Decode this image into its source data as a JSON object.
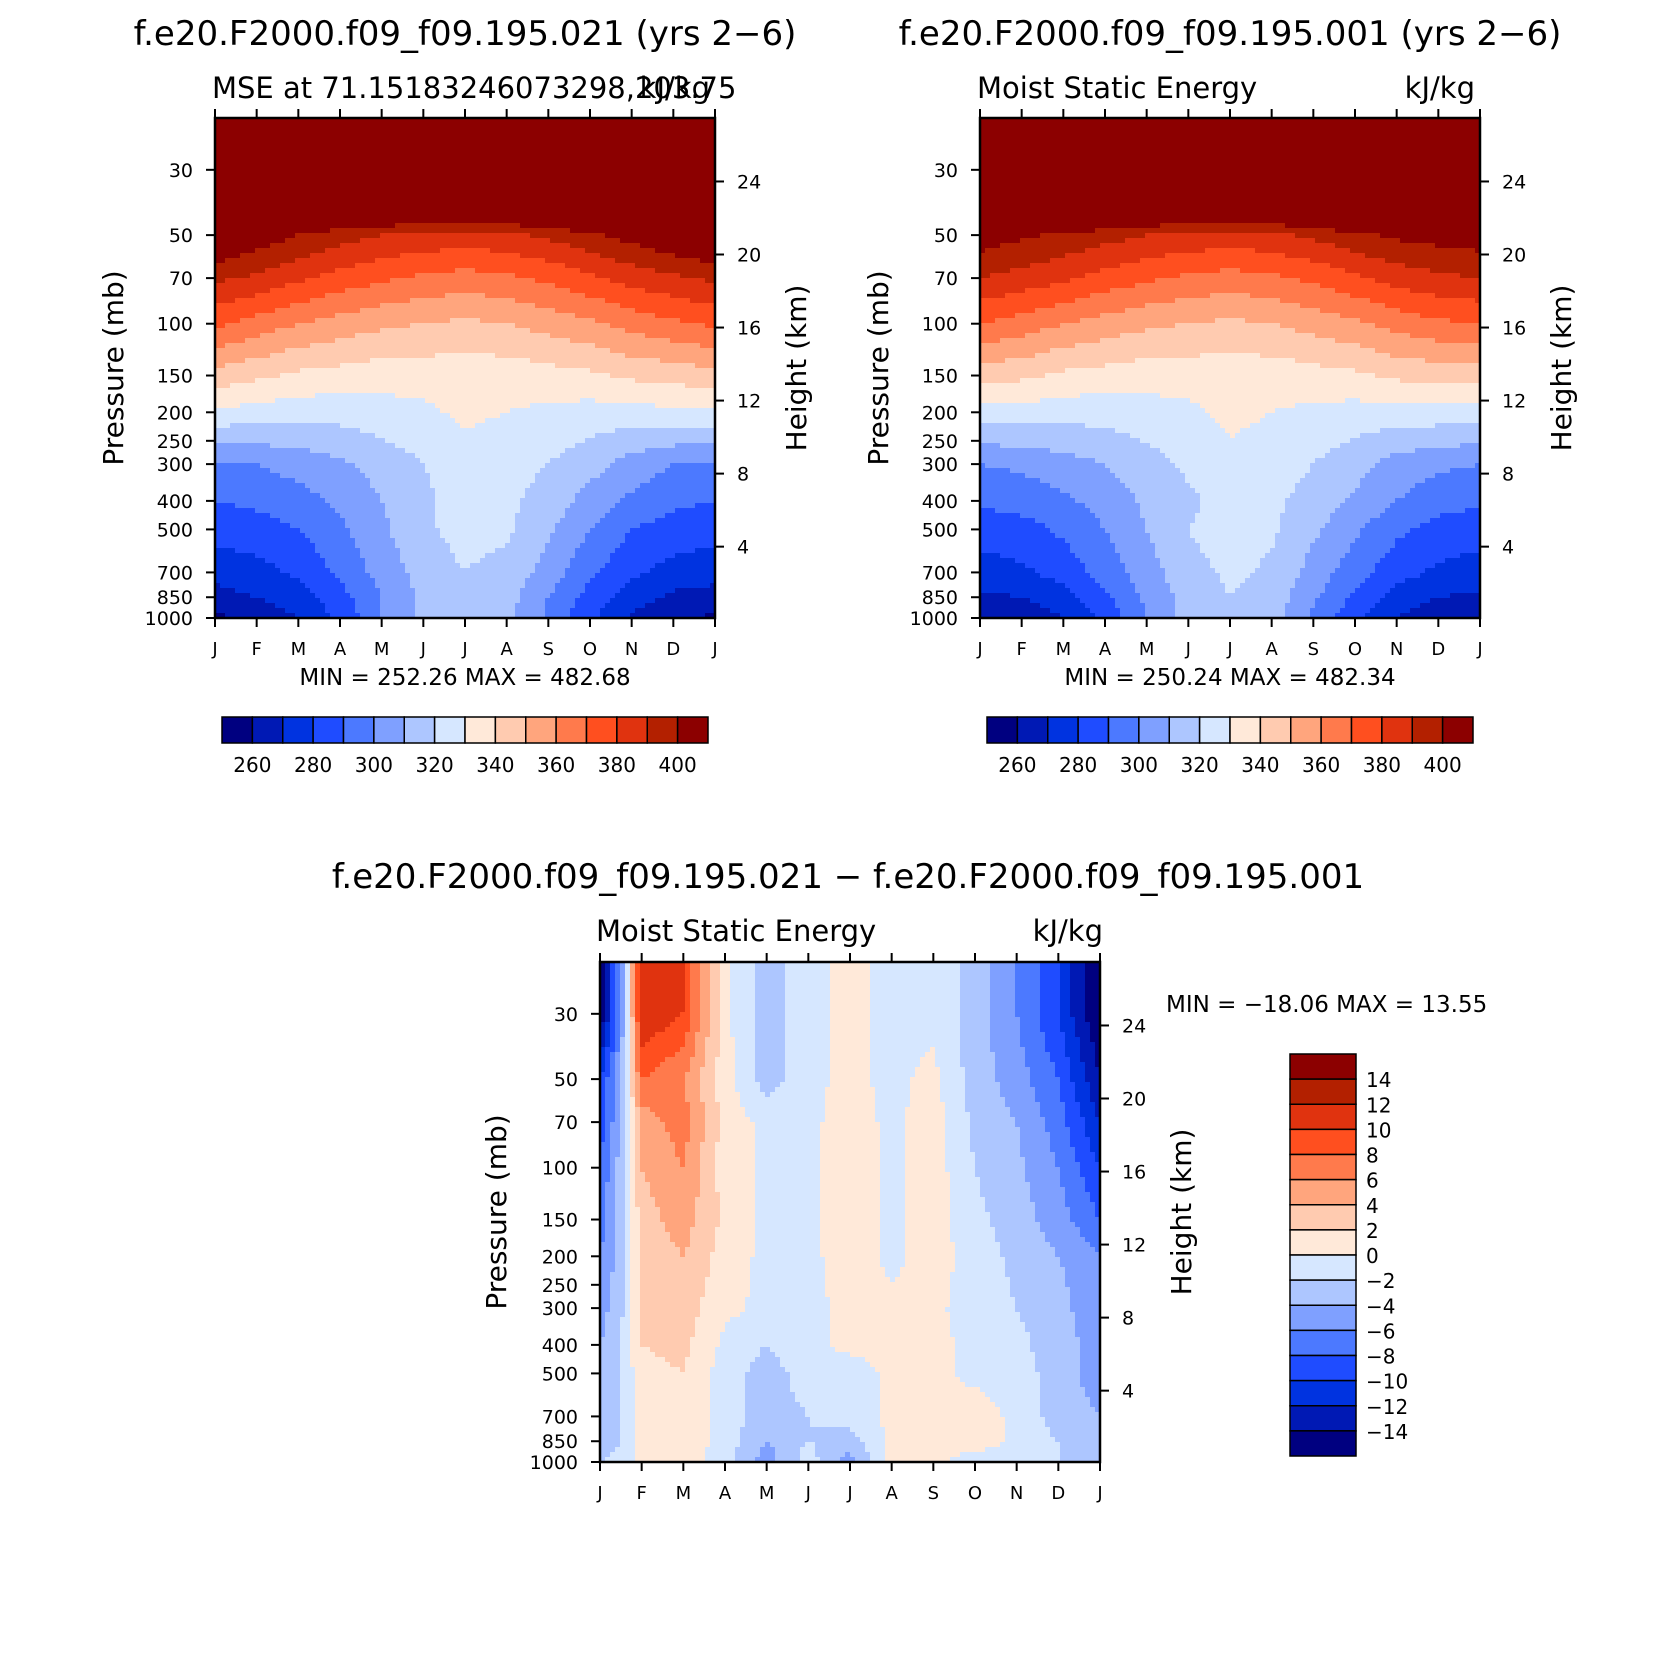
{
  "colors": {
    "mse_levels": [
      "#000080",
      "#0019b4",
      "#0033e0",
      "#1f4cff",
      "#4c79ff",
      "#7fa0ff",
      "#adc6ff",
      "#d6e7ff",
      "#ffe9d9",
      "#ffcbb0",
      "#ffa57d",
      "#ff7a4c",
      "#ff4f1f",
      "#e0330f",
      "#b32000",
      "#8c0000"
    ],
    "diff_levels": [
      "#000080",
      "#0019b4",
      "#0033e0",
      "#1f4cff",
      "#4c79ff",
      "#7fa0ff",
      "#adc6ff",
      "#d6e7ff",
      "#ffe9d9",
      "#ffcbb0",
      "#ffa57d",
      "#ff7a4c",
      "#ff4f1f",
      "#e0330f",
      "#b32000",
      "#8c0000"
    ]
  },
  "chart_data": [
    {
      "type": "heatmap",
      "title": "f.e20.F2000.f09_f09.195.021 (yrs 2−6)",
      "left_string": "MSE at 71.15183246073298,203.75",
      "right_string": "kJ/kg",
      "ylabel": "Pressure (mb)",
      "ylabel_right": "Height (km)",
      "x_ticks": [
        "J",
        "F",
        "M",
        "A",
        "M",
        "J",
        "J",
        "A",
        "S",
        "O",
        "N",
        "D",
        "J"
      ],
      "y_ticks": [
        "30",
        "50",
        "70",
        "100",
        "150",
        "200",
        "250",
        "300",
        "400",
        "500",
        "700",
        "850",
        "1000"
      ],
      "y_ticks_right": [
        "24",
        "20",
        "16",
        "12",
        "8",
        "4"
      ],
      "ylim": [
        20,
        1000
      ],
      "summary": "MIN = 252.26 MAX = 482.68",
      "min": 252.26,
      "max": 482.68,
      "colorbar_labels": [
        "260",
        "280",
        "300",
        "320",
        "340",
        "360",
        "380",
        "400"
      ],
      "colorbar_levels": [
        260,
        270,
        280,
        290,
        300,
        310,
        320,
        330,
        340,
        350,
        360,
        370,
        380,
        390,
        400
      ],
      "field": {
        "months": [
          1,
          2,
          3,
          4,
          5,
          6,
          7,
          8,
          9,
          10,
          11,
          12,
          13
        ],
        "levels_mb": [
          1000,
          850,
          700,
          500,
          400,
          300,
          200,
          150,
          100,
          70,
          50,
          30
        ],
        "values": [
          [
            258,
            262,
            270,
            282,
            300,
            312,
            316,
            312,
            298,
            282,
            268,
            262,
            258
          ],
          [
            266,
            270,
            276,
            286,
            300,
            312,
            318,
            314,
            300,
            286,
            274,
            268,
            266
          ],
          [
            274,
            276,
            282,
            292,
            304,
            314,
            320,
            316,
            306,
            292,
            282,
            276,
            274
          ],
          [
            284,
            286,
            290,
            298,
            308,
            318,
            324,
            322,
            312,
            300,
            290,
            286,
            284
          ],
          [
            290,
            292,
            296,
            302,
            310,
            318,
            324,
            322,
            316,
            306,
            298,
            292,
            290
          ],
          [
            298,
            300,
            304,
            308,
            314,
            320,
            326,
            324,
            320,
            314,
            306,
            300,
            298
          ],
          [
            328,
            326,
            324,
            324,
            326,
            328,
            332,
            330,
            328,
            326,
            326,
            328,
            328
          ],
          [
            346,
            342,
            338,
            336,
            334,
            334,
            334,
            334,
            336,
            338,
            342,
            344,
            346
          ],
          [
            372,
            366,
            360,
            356,
            352,
            350,
            348,
            350,
            354,
            358,
            364,
            368,
            372
          ],
          [
            392,
            388,
            382,
            376,
            372,
            368,
            366,
            368,
            372,
            378,
            384,
            388,
            392
          ],
          [
            416,
            406,
            400,
            394,
            390,
            388,
            386,
            388,
            392,
            398,
            404,
            410,
            416
          ],
          [
            470,
            468,
            466,
            464,
            462,
            460,
            460,
            460,
            462,
            464,
            466,
            468,
            470
          ]
        ]
      }
    },
    {
      "type": "heatmap",
      "title": "f.e20.F2000.f09_f09.195.001 (yrs 2−6)",
      "left_string": "Moist Static Energy",
      "right_string": "kJ/kg",
      "ylabel": "Pressure (mb)",
      "ylabel_right": "Height (km)",
      "x_ticks": [
        "J",
        "F",
        "M",
        "A",
        "M",
        "J",
        "J",
        "A",
        "S",
        "O",
        "N",
        "D",
        "J"
      ],
      "y_ticks": [
        "30",
        "50",
        "70",
        "100",
        "150",
        "200",
        "250",
        "300",
        "400",
        "500",
        "700",
        "850",
        "1000"
      ],
      "y_ticks_right": [
        "24",
        "20",
        "16",
        "12",
        "8",
        "4"
      ],
      "ylim": [
        20,
        1000
      ],
      "summary": "MIN = 250.24 MAX = 482.34",
      "min": 250.24,
      "max": 482.34,
      "colorbar_labels": [
        "260",
        "280",
        "300",
        "320",
        "340",
        "360",
        "380",
        "400"
      ],
      "colorbar_levels": [
        260,
        270,
        280,
        290,
        300,
        310,
        320,
        330,
        340,
        350,
        360,
        370,
        380,
        390,
        400
      ],
      "field": {
        "months": [
          1,
          2,
          3,
          4,
          5,
          6,
          7,
          8,
          9,
          10,
          11,
          12,
          13
        ],
        "levels_mb": [
          1000,
          850,
          700,
          500,
          400,
          300,
          200,
          150,
          100,
          70,
          50,
          30
        ],
        "values": [
          [
            262,
            264,
            270,
            282,
            300,
            314,
            318,
            314,
            298,
            282,
            270,
            264,
            262
          ],
          [
            268,
            270,
            276,
            288,
            302,
            314,
            320,
            316,
            302,
            288,
            276,
            270,
            268
          ],
          [
            276,
            278,
            284,
            294,
            306,
            316,
            322,
            318,
            306,
            294,
            284,
            278,
            276
          ],
          [
            284,
            286,
            292,
            300,
            310,
            320,
            326,
            322,
            312,
            302,
            292,
            286,
            284
          ],
          [
            292,
            294,
            298,
            304,
            312,
            318,
            324,
            322,
            316,
            308,
            300,
            294,
            292
          ],
          [
            300,
            302,
            306,
            310,
            316,
            322,
            328,
            326,
            320,
            314,
            306,
            302,
            300
          ],
          [
            326,
            326,
            324,
            324,
            326,
            328,
            332,
            330,
            328,
            326,
            326,
            326,
            326
          ],
          [
            344,
            342,
            338,
            336,
            334,
            334,
            334,
            334,
            336,
            338,
            342,
            344,
            344
          ],
          [
            370,
            366,
            360,
            356,
            352,
            350,
            348,
            350,
            354,
            358,
            364,
            368,
            370
          ],
          [
            390,
            386,
            382,
            376,
            372,
            368,
            366,
            368,
            372,
            378,
            384,
            388,
            390
          ],
          [
            406,
            402,
            398,
            394,
            390,
            388,
            386,
            388,
            392,
            398,
            402,
            404,
            406
          ],
          [
            470,
            468,
            466,
            464,
            462,
            460,
            460,
            460,
            462,
            464,
            466,
            468,
            470
          ]
        ]
      }
    },
    {
      "type": "heatmap",
      "title": "f.e20.F2000.f09_f09.195.021 − f.e20.F2000.f09_f09.195.001",
      "left_string": "Moist Static Energy",
      "right_string": "kJ/kg",
      "ylabel": "Pressure (mb)",
      "ylabel_right": "Height (km)",
      "x_ticks": [
        "J",
        "F",
        "M",
        "A",
        "M",
        "J",
        "J",
        "A",
        "S",
        "O",
        "N",
        "D",
        "J"
      ],
      "y_ticks": [
        "30",
        "50",
        "70",
        "100",
        "150",
        "200",
        "250",
        "300",
        "400",
        "500",
        "700",
        "850",
        "1000"
      ],
      "y_ticks_right": [
        "24",
        "20",
        "16",
        "12",
        "8",
        "4"
      ],
      "ylim": [
        20,
        1000
      ],
      "summary": "MIN = −18.06 MAX =   13.55",
      "min": -18.06,
      "max": 13.55,
      "colorbar_labels": [
        "14",
        "12",
        "10",
        "8",
        "6",
        "4",
        "2",
        "0",
        "−2",
        "−4",
        "−6",
        "−8",
        "−10",
        "−12",
        "−14"
      ],
      "colorbar_levels": [
        -14,
        -12,
        -10,
        -8,
        -6,
        -4,
        -2,
        0,
        2,
        4,
        6,
        8,
        10,
        12,
        14
      ],
      "field": {
        "months": [
          1,
          1.5,
          2,
          3,
          4,
          5,
          6,
          7,
          8,
          9,
          10,
          11,
          12,
          13
        ],
        "levels_mb": [
          1000,
          850,
          700,
          500,
          400,
          300,
          200,
          150,
          100,
          70,
          50,
          30
        ],
        "values": [
          [
            -2,
            -1,
            0.5,
            1,
            -1,
            -5,
            -1,
            -5,
            1,
            0.5,
            -1,
            -1,
            -2,
            -3
          ],
          [
            -3,
            -2,
            0.5,
            1.5,
            -1,
            -4,
            -2,
            -3,
            0.5,
            0.5,
            1,
            -0.5,
            -2,
            -3
          ],
          [
            -3,
            -2,
            1,
            1.5,
            -1,
            -3,
            -2,
            -1,
            0.5,
            0.5,
            1,
            -0.5,
            -3,
            -4
          ],
          [
            -4,
            -2,
            1.5,
            2,
            -1,
            -3,
            -1,
            -1,
            0.5,
            0.5,
            -0.5,
            -1,
            -3,
            -5
          ],
          [
            -4,
            -2,
            2,
            2.5,
            -0.5,
            -2,
            -0.5,
            0.5,
            0.5,
            0.5,
            -0.5,
            -1.5,
            -3,
            -5
          ],
          [
            -5,
            -2.5,
            2,
            3,
            0.5,
            -0.5,
            -0.5,
            0.5,
            0.5,
            0.5,
            -1,
            -2,
            -3,
            -6
          ],
          [
            -6,
            -3,
            2.5,
            4,
            1,
            -0.5,
            -0.5,
            1,
            -0.5,
            1,
            -1,
            -2.5,
            -4,
            -6
          ],
          [
            -7,
            -3,
            3,
            5,
            1.5,
            -0.5,
            -0.5,
            1,
            -0.5,
            1,
            -1.5,
            -3,
            -5,
            -8
          ],
          [
            -8,
            -3,
            4,
            6,
            1,
            -0.5,
            -0.5,
            1,
            -0.5,
            1,
            -2,
            -3.5,
            -6,
            -10
          ],
          [
            -9,
            -4,
            5,
            7,
            1,
            -0.5,
            -0.5,
            1,
            -0.5,
            1,
            -2.5,
            -4,
            -7,
            -12
          ],
          [
            -10,
            -4,
            8,
            6,
            1,
            -3,
            -0.5,
            0.5,
            -0.5,
            0.5,
            -3,
            -5,
            -8,
            -14
          ],
          [
            -16,
            -6,
            12,
            10,
            0.5,
            -3,
            -0.5,
            0.5,
            -0.5,
            -0.5,
            -3,
            -6,
            -10,
            -16
          ]
        ]
      }
    }
  ]
}
